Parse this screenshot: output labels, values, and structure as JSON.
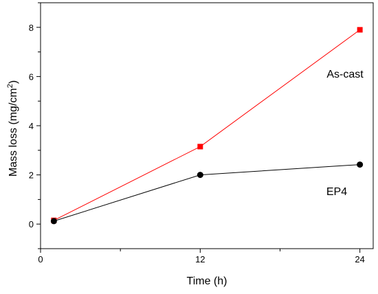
{
  "chart_data": {
    "type": "line",
    "title": "",
    "xlabel": "Time (h)",
    "ylabel_text": "Mass loss (mg/cm",
    "ylabel_sup": "2",
    "ylabel_close": ")",
    "xlim": [
      0,
      25
    ],
    "ylim": [
      -1,
      9
    ],
    "x_ticks": [
      0,
      12,
      24
    ],
    "x_minor_ticks": [
      6,
      18
    ],
    "y_ticks": [
      0,
      2,
      4,
      6,
      8
    ],
    "y_minor_ticks": [
      -1,
      1,
      3,
      5,
      7,
      9
    ],
    "grid": false,
    "legend": "none",
    "series": [
      {
        "name": "As-cast",
        "x": [
          1,
          12,
          24
        ],
        "values": [
          0.15,
          3.15,
          7.9
        ],
        "color": "#ff0000",
        "marker": "square"
      },
      {
        "name": "EP4",
        "x": [
          1,
          12,
          24
        ],
        "values": [
          0.12,
          2.0,
          2.42
        ],
        "color": "#000000",
        "marker": "circle"
      }
    ]
  }
}
